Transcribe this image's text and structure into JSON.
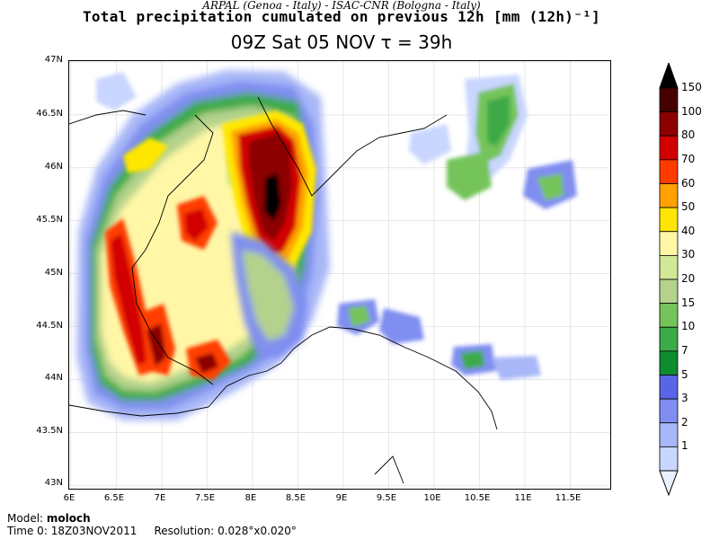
{
  "header": {
    "credits": "ARPAL (Genoa - Italy)  -  ISAC-CNR (Bologna - Italy)",
    "title": "Total precipitation cumulated on previous 12h [mm (12h)⁻¹]",
    "subtitle": "09Z Sat 05 NOV  τ = 39h"
  },
  "axes": {
    "latitude_labels": [
      "47N",
      "46.5N",
      "46N",
      "45.5N",
      "45N",
      "44.5N",
      "44N",
      "43.5N",
      "43N"
    ],
    "longitude_labels": [
      "6E",
      "6.5E",
      "7E",
      "7.5E",
      "8E",
      "8.5E",
      "9E",
      "9.5E",
      "10E",
      "10.5E",
      "11E",
      "11.5E"
    ]
  },
  "legend": {
    "levels": [
      "1",
      "2",
      "3",
      "5",
      "7",
      "10",
      "15",
      "20",
      "30",
      "40",
      "50",
      "60",
      "70",
      "80",
      "100",
      "150"
    ],
    "colors": [
      "#ebf0ff",
      "#c9d6ff",
      "#a8b7f7",
      "#7f8ef0",
      "#5a64e6",
      "#0f8c2f",
      "#3caa46",
      "#74c45a",
      "#b4d28c",
      "#d2e896",
      "#fff7a6",
      "#ffe600",
      "#ffa200",
      "#ff3c00",
      "#d20000",
      "#8c0000",
      "#460000",
      "#000000"
    ]
  },
  "footer": {
    "model_label": "Model:",
    "model_value": "moloch",
    "time_label": "Time 0:",
    "time_value": "18Z03NOV2011",
    "resolution_label": "Resolution:",
    "resolution_value": "0.028°x0.020°"
  }
}
